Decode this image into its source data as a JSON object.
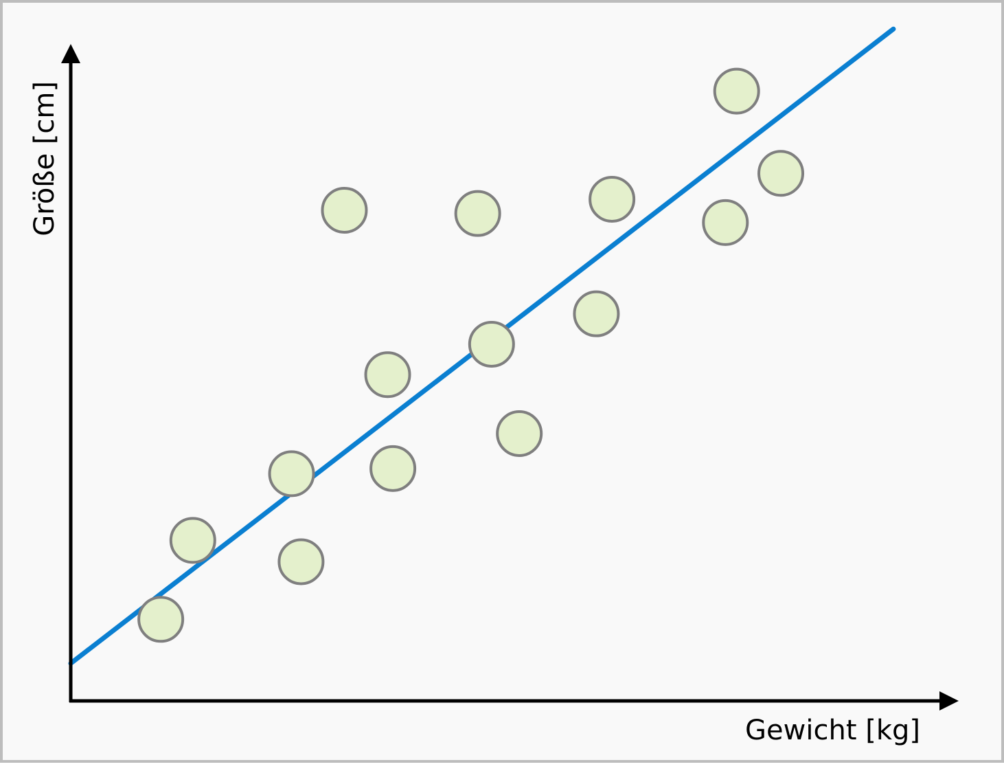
{
  "chart_data": {
    "type": "scatter",
    "title": "",
    "xlabel": "Gewicht [kg]",
    "ylabel": "Größe [cm]",
    "xlim": [
      0,
      100
    ],
    "ylim": [
      0,
      100
    ],
    "grid": false,
    "axis_ticks": false,
    "colors": {
      "point_fill": "#e4f0cc",
      "point_stroke": "#7f7f7f",
      "trend_line": "#0a7fd1",
      "axes": "#000000",
      "background": "#f9f9f9",
      "frame": "#bdbdbd"
    },
    "points": [
      {
        "x": 10.4,
        "y": 12.6
      },
      {
        "x": 14.1,
        "y": 24.8
      },
      {
        "x": 25.5,
        "y": 35.1
      },
      {
        "x": 26.6,
        "y": 21.5
      },
      {
        "x": 31.6,
        "y": 75.8
      },
      {
        "x": 36.6,
        "y": 50.4
      },
      {
        "x": 37.2,
        "y": 35.9
      },
      {
        "x": 47.0,
        "y": 75.3
      },
      {
        "x": 48.6,
        "y": 55.1
      },
      {
        "x": 51.8,
        "y": 41.3
      },
      {
        "x": 60.7,
        "y": 59.8
      },
      {
        "x": 62.5,
        "y": 77.5
      },
      {
        "x": 75.6,
        "y": 73.9
      },
      {
        "x": 76.9,
        "y": 94.2
      },
      {
        "x": 82.0,
        "y": 81.5
      }
    ],
    "trend_line": {
      "x": [
        0,
        95
      ],
      "y": [
        5.8,
        103.8
      ]
    }
  }
}
